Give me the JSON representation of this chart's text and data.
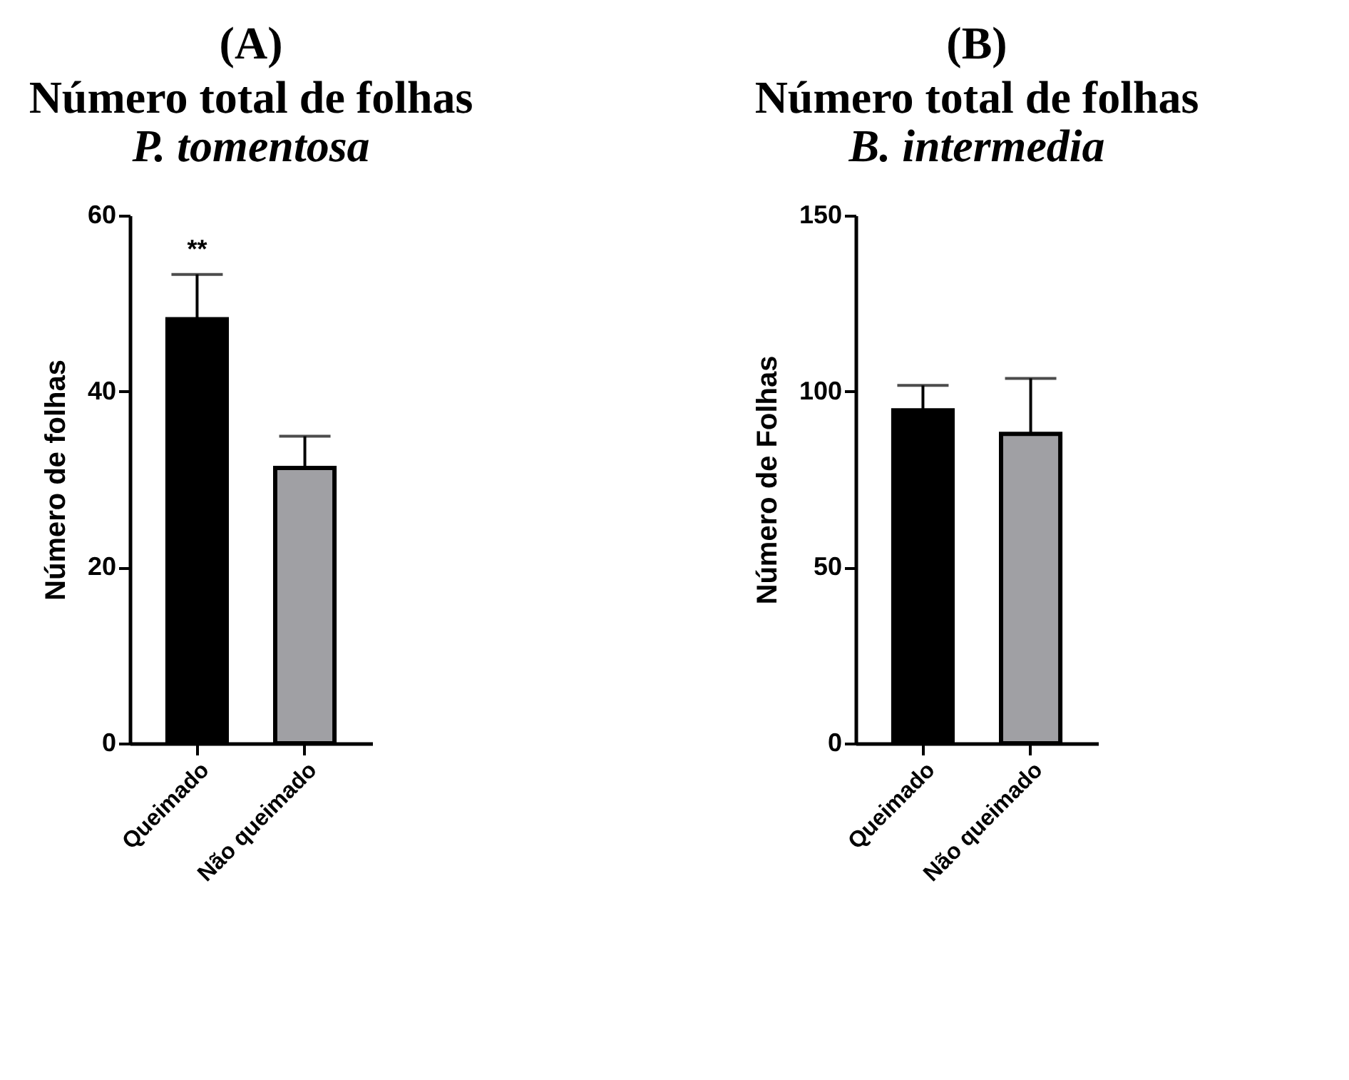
{
  "chart_data": [
    {
      "type": "bar",
      "title": "Número total de folhas",
      "subtitle": "P. tomentosa",
      "ylabel": "Número de folhas",
      "categories": [
        "Queimado",
        "Não queimado"
      ],
      "values": [
        48.2,
        31.3
      ],
      "colors": [
        "#000000",
        "#a0a0a4"
      ],
      "errors": [
        [
          48.2,
          53.3
        ],
        [
          31.3,
          34.9
        ]
      ],
      "ylim": [
        0,
        60
      ],
      "yticks": [
        0,
        20,
        40,
        60
      ],
      "grid": false,
      "annotations": [
        "(A)",
        {
          "text": "**",
          "x": "Queimado",
          "y": 53.3
        }
      ]
    },
    {
      "type": "bar",
      "title": "Número total de folhas",
      "subtitle": "B. intermedia",
      "ylabel": "Número de Folhas",
      "categories": [
        "Queimado",
        "Não queimado"
      ],
      "values": [
        94.6,
        87.9
      ],
      "colors": [
        "#000000",
        "#a0a0a4"
      ],
      "errors": [
        [
          94.6,
          101.7
        ],
        [
          87.9,
          103.7
        ]
      ],
      "ylim": [
        0,
        150
      ],
      "yticks": [
        0,
        50,
        100,
        150
      ],
      "grid": false,
      "annotations": [
        "(B)"
      ]
    }
  ]
}
